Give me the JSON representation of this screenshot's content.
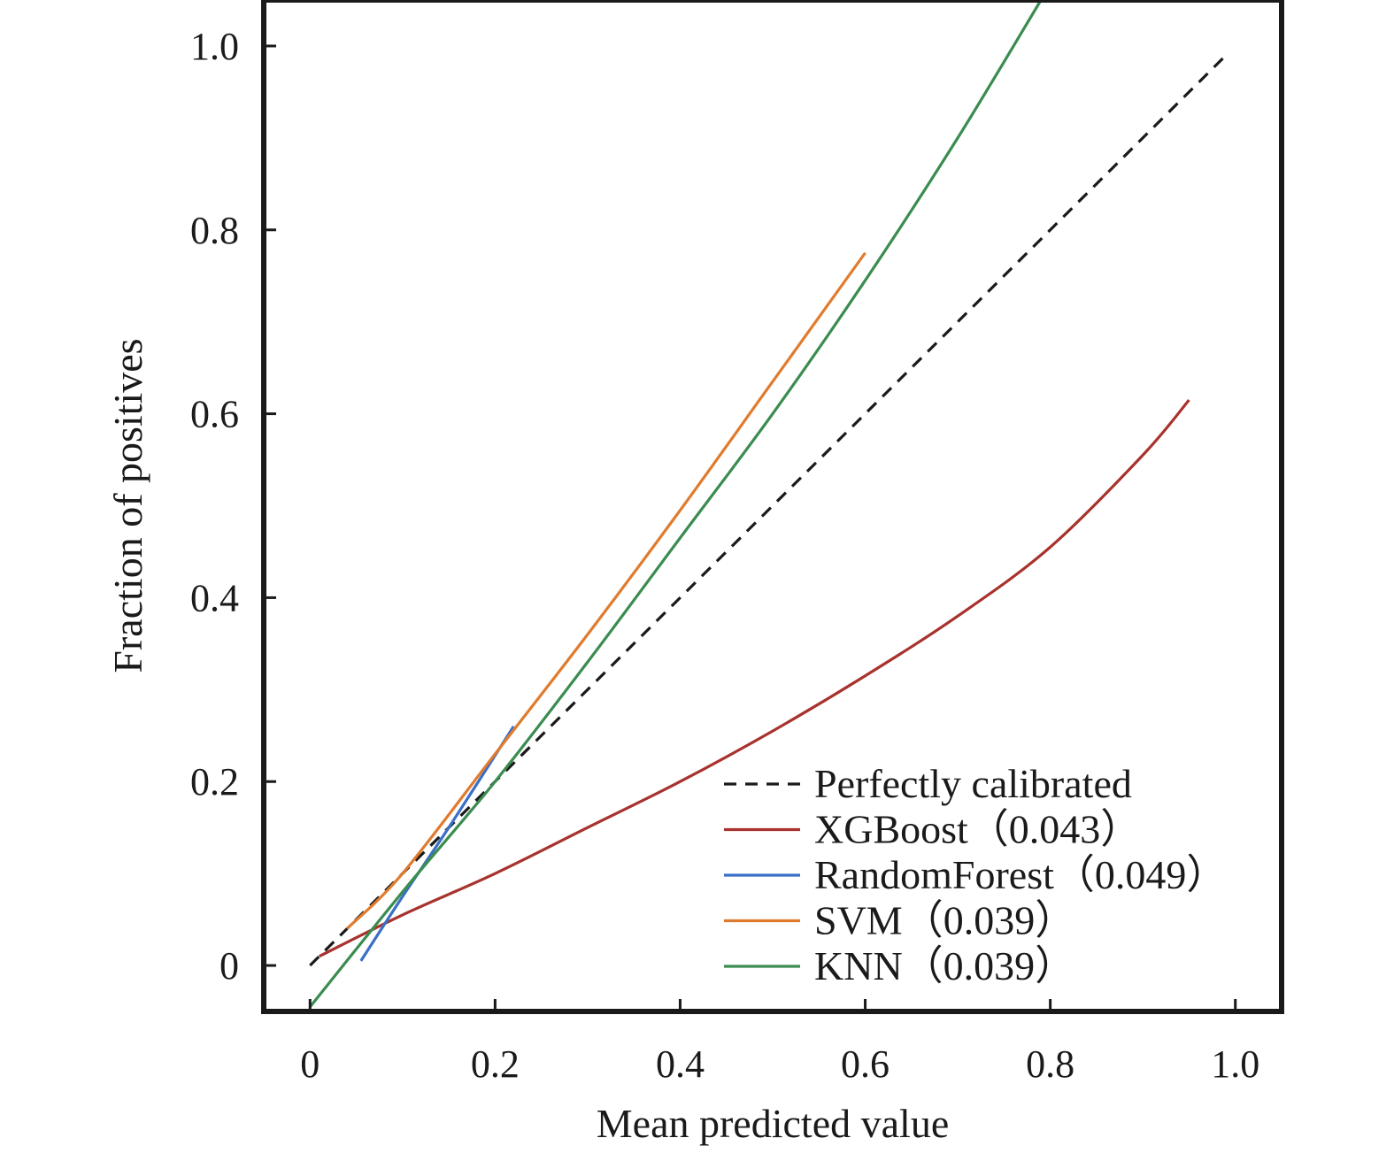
{
  "chart_data": {
    "type": "line",
    "xlabel": "Mean predicted value",
    "ylabel": "Fraction of positives",
    "xlim": [
      -0.05,
      1.05
    ],
    "ylim": [
      -0.05,
      1.05
    ],
    "x_ticks": [
      {
        "value": 0,
        "label": "0"
      },
      {
        "value": 0.2,
        "label": "0.2"
      },
      {
        "value": 0.4,
        "label": "0.4"
      },
      {
        "value": 0.6,
        "label": "0.6"
      },
      {
        "value": 0.8,
        "label": "0.8"
      },
      {
        "value": 1.0,
        "label": "1.0"
      }
    ],
    "y_ticks": [
      {
        "value": 0,
        "label": "0"
      },
      {
        "value": 0.2,
        "label": "0.2"
      },
      {
        "value": 0.4,
        "label": "0.4"
      },
      {
        "value": 0.6,
        "label": "0.6"
      },
      {
        "value": 0.8,
        "label": "0.8"
      },
      {
        "value": 1.0,
        "label": "1.0"
      }
    ],
    "grid": false,
    "legend_position": "lower-right",
    "series": [
      {
        "name": "Perfectly calibrated",
        "color": "#1a1a1a",
        "dash": true,
        "points": [
          [
            0.0,
            0.0
          ],
          [
            0.99,
            0.99
          ]
        ]
      },
      {
        "name": "XGBoost（0.043）",
        "color": "#a8322d",
        "dash": false,
        "points": [
          [
            0.01,
            0.01
          ],
          [
            0.1,
            0.055
          ],
          [
            0.2,
            0.1
          ],
          [
            0.3,
            0.15
          ],
          [
            0.4,
            0.2
          ],
          [
            0.5,
            0.255
          ],
          [
            0.6,
            0.315
          ],
          [
            0.7,
            0.38
          ],
          [
            0.8,
            0.455
          ],
          [
            0.9,
            0.555
          ],
          [
            0.95,
            0.615
          ]
        ]
      },
      {
        "name": "RandomForest（0.049）",
        "color": "#3a6fc6",
        "dash": false,
        "points": [
          [
            0.055,
            0.005
          ],
          [
            0.1,
            0.075
          ],
          [
            0.15,
            0.15
          ],
          [
            0.22,
            0.26
          ]
        ]
      },
      {
        "name": "SVM（0.039）",
        "color": "#e07b2e",
        "dash": false,
        "points": [
          [
            0.04,
            0.04
          ],
          [
            0.1,
            0.1
          ],
          [
            0.2,
            0.23
          ],
          [
            0.3,
            0.36
          ],
          [
            0.4,
            0.495
          ],
          [
            0.5,
            0.635
          ],
          [
            0.6,
            0.775
          ]
        ]
      },
      {
        "name": "KNN（0.039）",
        "color": "#3a8c4f",
        "dash": false,
        "points": [
          [
            0.0,
            -0.045
          ],
          [
            0.1,
            0.08
          ],
          [
            0.2,
            0.2
          ],
          [
            0.3,
            0.33
          ],
          [
            0.4,
            0.465
          ],
          [
            0.5,
            0.6
          ],
          [
            0.6,
            0.745
          ],
          [
            0.7,
            0.9
          ],
          [
            0.79,
            1.05
          ]
        ]
      }
    ]
  }
}
